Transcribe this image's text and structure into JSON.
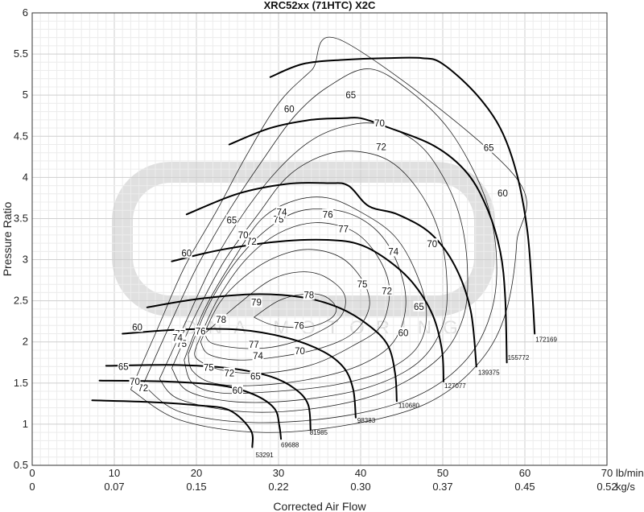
{
  "chart_data": {
    "type": "line",
    "title": "XRC52xx (71HTC) X2C",
    "xlabel": "Corrected Air Flow",
    "ylabel": "Pressure Ratio",
    "x_unit_primary": "lb/min",
    "x_unit_secondary": "kg/s",
    "xlim": [
      0,
      70
    ],
    "ylim": [
      0.5,
      6
    ],
    "x_ticks": [
      0,
      10,
      20,
      30,
      40,
      50,
      60,
      70
    ],
    "x_ticks_kgs": [
      "0",
      "0.07",
      "0.15",
      "0.22",
      "0.30",
      "0.37",
      "0.45",
      "0.52"
    ],
    "y_ticks": [
      "0.5",
      "1",
      "1.5",
      "2",
      "2.5",
      "3",
      "3.5",
      "4",
      "4.5",
      "5",
      "5.5",
      "6"
    ],
    "grid": true,
    "watermark": "DNA MOTORING",
    "speed_lines": [
      {
        "name": "53291",
        "x": [
          7.3,
          14,
          20,
          24,
          26.6,
          26.8
        ],
        "y": [
          1.29,
          1.27,
          1.23,
          1.17,
          0.93,
          0.72
        ]
      },
      {
        "name": "69688",
        "x": [
          8.2,
          16,
          23,
          27,
          29.5,
          30.1,
          30.3
        ],
        "y": [
          1.53,
          1.52,
          1.47,
          1.36,
          1.19,
          0.98,
          0.82
        ]
      },
      {
        "name": "81985",
        "x": [
          9,
          17,
          24,
          29,
          32,
          33.6,
          33.9
        ],
        "y": [
          1.71,
          1.72,
          1.68,
          1.58,
          1.43,
          1.24,
          0.93
        ]
      },
      {
        "name": "98383",
        "x": [
          11,
          18,
          25,
          31,
          35.5,
          38,
          39.1,
          39.4
        ],
        "y": [
          2.1,
          2.15,
          2.15,
          2.05,
          1.88,
          1.68,
          1.42,
          1.08
        ]
      },
      {
        "name": "110680",
        "x": [
          14,
          20,
          27,
          33,
          37.5,
          41,
          43.3,
          44.2,
          44.4
        ],
        "y": [
          2.42,
          2.52,
          2.58,
          2.54,
          2.41,
          2.2,
          1.96,
          1.62,
          1.28
        ]
      },
      {
        "name": "127077",
        "x": [
          17,
          23,
          30,
          36,
          40,
          43.5,
          46.5,
          48.8,
          49.9,
          50.1
        ],
        "y": [
          2.98,
          3.12,
          3.22,
          3.24,
          3.18,
          2.98,
          2.7,
          2.32,
          1.9,
          1.52
        ]
      },
      {
        "name": "139375",
        "x": [
          18.8,
          25,
          31,
          36,
          38.5,
          41,
          44.5,
          48.5,
          51.5,
          53.4,
          54.1
        ],
        "y": [
          3.55,
          3.8,
          3.92,
          3.93,
          3.9,
          3.65,
          3.55,
          3.32,
          2.92,
          2.38,
          1.7
        ]
      },
      {
        "name": "155772",
        "x": [
          24,
          29,
          34,
          38,
          40,
          43,
          49,
          53,
          55.5,
          57,
          57.6,
          57.8
        ],
        "y": [
          4.4,
          4.6,
          4.7,
          4.72,
          4.72,
          4.62,
          4.38,
          4.05,
          3.6,
          3.1,
          2.55,
          1.75
        ]
      },
      {
        "name": "172169",
        "x": [
          29,
          33,
          38,
          43,
          47.5,
          50,
          54,
          57,
          59,
          60.3,
          60.9,
          61.2
        ],
        "y": [
          5.22,
          5.38,
          5.43,
          5.45,
          5.45,
          5.38,
          5.02,
          4.6,
          4.05,
          3.35,
          2.6,
          2.1
        ]
      }
    ],
    "efficiency_islands": [
      {
        "name": "79",
        "x": [
          27,
          30,
          33,
          35.5,
          37,
          36.3,
          33.5,
          29.5,
          27
        ],
        "y": [
          2.3,
          2.5,
          2.58,
          2.56,
          2.42,
          2.28,
          2.18,
          2.2,
          2.3
        ]
      },
      {
        "name": "78",
        "x": [
          21,
          25,
          29,
          32.5,
          35.5,
          38,
          37.5,
          34,
          30,
          26,
          22,
          21
        ],
        "y": [
          2.1,
          2.45,
          2.75,
          2.85,
          2.8,
          2.58,
          2.3,
          2.08,
          1.95,
          1.92,
          1.98,
          2.1
        ]
      },
      {
        "name": "77",
        "x": [
          20.5,
          23,
          27,
          31,
          34.5,
          38,
          40.5,
          41,
          39,
          35,
          30,
          25,
          21.5,
          20.5
        ],
        "y": [
          2.0,
          2.5,
          2.88,
          3.08,
          3.12,
          3.0,
          2.7,
          2.4,
          2.1,
          1.92,
          1.82,
          1.78,
          1.85,
          2.0
        ]
      },
      {
        "name": "76",
        "x": [
          20,
          22.5,
          26,
          30,
          34.5,
          39,
          42,
          43.5,
          42.5,
          39,
          34,
          28,
          23,
          20,
          20
        ],
        "y": [
          1.95,
          2.5,
          3.0,
          3.32,
          3.45,
          3.35,
          3.05,
          2.65,
          2.2,
          1.95,
          1.72,
          1.62,
          1.66,
          1.8,
          1.95
        ]
      },
      {
        "name": "75",
        "x": [
          19,
          21.5,
          25,
          29,
          33,
          38,
          42,
          44.5,
          45.5,
          44,
          40,
          34,
          27,
          22,
          19.5,
          19
        ],
        "y": [
          1.85,
          2.45,
          3.0,
          3.4,
          3.6,
          3.58,
          3.35,
          2.95,
          2.45,
          2.0,
          1.72,
          1.55,
          1.47,
          1.5,
          1.65,
          1.85
        ]
      },
      {
        "name": "74",
        "x": [
          18.5,
          21,
          24.5,
          28,
          32,
          36,
          40,
          44,
          46.5,
          48,
          47,
          43,
          37,
          30,
          23,
          19.5,
          18.5
        ],
        "y": [
          1.78,
          2.4,
          3.0,
          3.5,
          3.72,
          3.75,
          3.58,
          3.3,
          2.9,
          2.4,
          1.95,
          1.65,
          1.48,
          1.4,
          1.38,
          1.5,
          1.78
        ]
      },
      {
        "name": "72",
        "x": [
          17,
          20,
          23.5,
          27.5,
          31,
          35,
          39,
          43.5,
          47,
          49.5,
          50.5,
          50,
          47,
          41,
          33,
          25,
          19,
          17
        ],
        "y": [
          1.68,
          2.35,
          3.0,
          3.55,
          4.0,
          4.25,
          4.32,
          4.2,
          3.85,
          3.35,
          2.75,
          2.2,
          1.75,
          1.45,
          1.3,
          1.27,
          1.4,
          1.68
        ]
      },
      {
        "name": "70",
        "x": [
          15.5,
          18.5,
          22,
          26,
          30,
          34,
          38,
          42,
          46.5,
          49.5,
          52,
          53,
          52.5,
          49.5,
          43,
          35,
          26,
          18,
          15.5
        ],
        "y": [
          1.55,
          2.2,
          2.95,
          3.6,
          4.1,
          4.45,
          4.62,
          4.65,
          4.45,
          4.1,
          3.55,
          2.9,
          2.3,
          1.8,
          1.4,
          1.2,
          1.15,
          1.3,
          1.55
        ]
      },
      {
        "name": "65",
        "x": [
          13.5,
          16.5,
          20,
          24,
          28,
          32,
          36,
          41,
          46,
          51,
          55,
          56.5,
          56,
          53,
          47,
          38,
          27,
          18,
          13.5
        ],
        "y": [
          1.48,
          2.15,
          2.9,
          3.6,
          4.2,
          4.75,
          5.1,
          5.32,
          5.05,
          4.55,
          3.8,
          3.1,
          2.4,
          1.8,
          1.35,
          1.1,
          1.02,
          1.15,
          1.48
        ]
      },
      {
        "name": "60",
        "x": [
          12,
          15,
          18.5,
          22.5,
          26,
          30,
          34,
          38,
          58.5,
          59,
          57.5,
          54,
          48,
          39,
          28,
          18,
          12
        ],
        "y": [
          1.42,
          2.1,
          2.9,
          3.6,
          4.25,
          4.9,
          5.3,
          5.65,
          4.05,
          3.2,
          2.3,
          1.7,
          1.25,
          1.0,
          0.9,
          1.05,
          1.42
        ]
      }
    ],
    "efficiency_labels": [
      {
        "text": "79",
        "x": 27.3,
        "y": 2.48
      },
      {
        "text": "78",
        "x": 33.7,
        "y": 2.57
      },
      {
        "text": "78",
        "x": 23.0,
        "y": 2.27
      },
      {
        "text": "77",
        "x": 37.9,
        "y": 3.37
      },
      {
        "text": "77",
        "x": 27.0,
        "y": 1.97
      },
      {
        "text": "77",
        "x": 18.0,
        "y": 2.1
      },
      {
        "text": "76",
        "x": 36.0,
        "y": 3.55
      },
      {
        "text": "76",
        "x": 20.5,
        "y": 2.13
      },
      {
        "text": "76",
        "x": 32.5,
        "y": 2.2
      },
      {
        "text": "75",
        "x": 30.0,
        "y": 3.49
      },
      {
        "text": "75",
        "x": 40.2,
        "y": 2.7
      },
      {
        "text": "75",
        "x": 18.2,
        "y": 1.98
      },
      {
        "text": "75",
        "x": 21.5,
        "y": 1.69
      },
      {
        "text": "74",
        "x": 30.4,
        "y": 3.58
      },
      {
        "text": "74",
        "x": 44.0,
        "y": 3.1
      },
      {
        "text": "74",
        "x": 17.7,
        "y": 2.05
      },
      {
        "text": "74",
        "x": 27.5,
        "y": 1.83
      },
      {
        "text": "72",
        "x": 42.5,
        "y": 4.37
      },
      {
        "text": "72",
        "x": 26.7,
        "y": 3.22
      },
      {
        "text": "72",
        "x": 43.2,
        "y": 2.62
      },
      {
        "text": "72",
        "x": 24.0,
        "y": 1.62
      },
      {
        "text": "72",
        "x": 13.5,
        "y": 1.44
      },
      {
        "text": "70",
        "x": 42.3,
        "y": 4.66
      },
      {
        "text": "70",
        "x": 25.7,
        "y": 3.3
      },
      {
        "text": "70",
        "x": 48.7,
        "y": 3.19
      },
      {
        "text": "70",
        "x": 32.6,
        "y": 1.89
      },
      {
        "text": "70",
        "x": 12.5,
        "y": 1.52
      },
      {
        "text": "65",
        "x": 38.8,
        "y": 5.0
      },
      {
        "text": "65",
        "x": 24.3,
        "y": 3.48
      },
      {
        "text": "65",
        "x": 55.6,
        "y": 4.36
      },
      {
        "text": "65",
        "x": 47.1,
        "y": 2.43
      },
      {
        "text": "65",
        "x": 27.2,
        "y": 1.58
      },
      {
        "text": "65",
        "x": 11.1,
        "y": 1.7
      },
      {
        "text": "60",
        "x": 31.3,
        "y": 4.83
      },
      {
        "text": "60",
        "x": 18.8,
        "y": 3.08
      },
      {
        "text": "60",
        "x": 57.3,
        "y": 3.81
      },
      {
        "text": "60",
        "x": 45.2,
        "y": 2.11
      },
      {
        "text": "60",
        "x": 25.0,
        "y": 1.41
      },
      {
        "text": "60",
        "x": 12.8,
        "y": 2.18
      }
    ],
    "speed_labels": [
      {
        "text": "53291",
        "x": 27.2,
        "y": 0.6
      },
      {
        "text": "69688",
        "x": 30.3,
        "y": 0.72
      },
      {
        "text": "81985",
        "x": 33.8,
        "y": 0.87
      },
      {
        "text": "98383",
        "x": 39.6,
        "y": 1.02
      },
      {
        "text": "110680",
        "x": 44.6,
        "y": 1.2
      },
      {
        "text": "127077",
        "x": 50.2,
        "y": 1.44
      },
      {
        "text": "139375",
        "x": 54.3,
        "y": 1.6
      },
      {
        "text": "155772",
        "x": 57.9,
        "y": 1.78
      },
      {
        "text": "172169",
        "x": 61.3,
        "y": 2.0
      }
    ]
  }
}
